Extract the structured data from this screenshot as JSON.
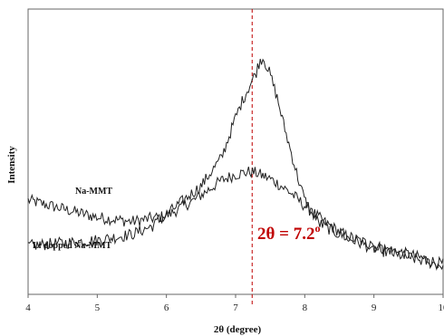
{
  "chart_data": {
    "type": "line",
    "xlabel": "2θ (degree)",
    "ylabel": "Intensity",
    "xlim": [
      4,
      10
    ],
    "ylim": [
      0,
      100
    ],
    "x_ticks": [
      "4",
      "5",
      "6",
      "7",
      "8",
      "9",
      "10"
    ],
    "grid": false,
    "line_color": "#222222",
    "annotation": {
      "text_main": "2θ = 7.2",
      "text_sup": "o",
      "x": 7.2,
      "color": "#c00000"
    },
    "series": [
      {
        "name": "Na-MMT",
        "x": [
          4.0,
          4.5,
          5.0,
          5.5,
          6.0,
          6.4,
          6.8,
          7.0,
          7.2,
          7.3,
          7.4,
          7.5,
          7.6,
          7.8,
          8.0,
          8.3,
          8.6,
          9.0,
          9.5,
          10.0
        ],
        "values": [
          33,
          30,
          27,
          25.5,
          27.5,
          33,
          40,
          42,
          43,
          42.5,
          41.5,
          40.5,
          39,
          35.5,
          31,
          25,
          20.5,
          17,
          14,
          10.5
        ]
      },
      {
        "name": "Li dopped Na-MMT",
        "x": [
          4.0,
          4.5,
          5.0,
          5.5,
          5.8,
          6.2,
          6.5,
          6.8,
          7.0,
          7.1,
          7.2,
          7.3,
          7.35,
          7.4,
          7.5,
          7.6,
          7.7,
          7.8,
          7.9,
          8.0,
          8.2,
          8.5,
          9.0,
          9.5,
          10.0
        ],
        "values": [
          17,
          18,
          19,
          21,
          24,
          32,
          38,
          48,
          62,
          68,
          73,
          78,
          82,
          83,
          77,
          69,
          59,
          50,
          41,
          33,
          25,
          21,
          16,
          13,
          10
        ]
      }
    ]
  }
}
